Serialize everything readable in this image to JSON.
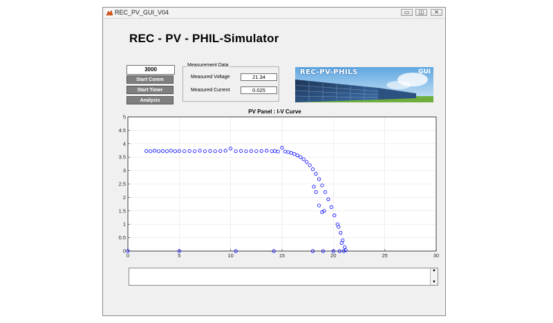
{
  "window": {
    "title": "REC_PV_GUI_V04",
    "controls": {
      "minimize": "▭",
      "maximize": "◫",
      "close": "✕"
    }
  },
  "app": {
    "title": "REC - PV - PHIL-Simulator",
    "value_field": "3000",
    "buttons": {
      "start_comm": "Start Comm",
      "start_timer": "Start Timer",
      "analysis": "Analysis"
    }
  },
  "measurement": {
    "panel_title": "Measurement Data",
    "voltage_label": "Measured Voltage",
    "voltage_value": "21.34",
    "current_label": "Measured Current",
    "current_value": "0.025"
  },
  "banner": {
    "text": "REC-PV-PHILS",
    "gui": "GUI"
  },
  "message_box": {
    "text": "",
    "icons": {
      "up": "chevron-up-icon",
      "down": "chevron-down-icon"
    }
  },
  "colors": {
    "button_gray": "#7f7f7f",
    "marker_blue": "#0000ff",
    "sky_blue": "#6fb3e6",
    "grass_green": "#6fae3c"
  },
  "chart_data": {
    "type": "scatter",
    "title": "PV Panel : I-V Curve",
    "xlabel": "",
    "ylabel": "",
    "xlim": [
      0,
      30
    ],
    "ylim": [
      0,
      5
    ],
    "xticks": [
      0,
      5,
      10,
      15,
      20,
      25,
      30
    ],
    "yticks": [
      0,
      0.5,
      1,
      1.5,
      2,
      2.5,
      3,
      3.5,
      4,
      4.5,
      5
    ],
    "grid": true,
    "marker": "open-circle",
    "series": [
      {
        "points": [
          [
            1.8,
            3.73
          ],
          [
            2.2,
            3.72
          ],
          [
            2.6,
            3.74
          ],
          [
            3.0,
            3.72
          ],
          [
            3.4,
            3.73
          ],
          [
            3.8,
            3.72
          ],
          [
            4.2,
            3.74
          ],
          [
            4.6,
            3.72
          ],
          [
            5.0,
            3.73
          ],
          [
            5.5,
            3.72
          ],
          [
            6.0,
            3.73
          ],
          [
            6.5,
            3.72
          ],
          [
            7.0,
            3.74
          ],
          [
            7.5,
            3.72
          ],
          [
            8.0,
            3.73
          ],
          [
            8.5,
            3.72
          ],
          [
            9.0,
            3.73
          ],
          [
            9.5,
            3.74
          ],
          [
            10.0,
            3.82
          ],
          [
            10.5,
            3.72
          ],
          [
            11.0,
            3.73
          ],
          [
            11.5,
            3.72
          ],
          [
            12.0,
            3.73
          ],
          [
            12.5,
            3.72
          ],
          [
            13.0,
            3.73
          ],
          [
            13.5,
            3.74
          ],
          [
            14.0,
            3.72
          ],
          [
            14.3,
            3.73
          ],
          [
            14.6,
            3.71
          ],
          [
            15.0,
            3.85
          ],
          [
            15.3,
            3.71
          ],
          [
            15.6,
            3.69
          ],
          [
            15.9,
            3.66
          ],
          [
            16.2,
            3.62
          ],
          [
            16.5,
            3.57
          ],
          [
            16.8,
            3.5
          ],
          [
            17.1,
            3.42
          ],
          [
            17.4,
            3.32
          ],
          [
            17.7,
            3.2
          ],
          [
            18.0,
            3.05
          ],
          [
            18.3,
            2.88
          ],
          [
            18.6,
            2.68
          ],
          [
            18.9,
            2.45
          ],
          [
            19.2,
            2.2
          ],
          [
            19.5,
            1.93
          ],
          [
            19.8,
            1.64
          ],
          [
            20.1,
            1.33
          ],
          [
            20.4,
            1.0
          ],
          [
            20.7,
            0.68
          ],
          [
            20.9,
            0.4
          ],
          [
            21.1,
            0.15
          ],
          [
            21.2,
            0.03
          ],
          [
            18.1,
            2.4
          ],
          [
            18.3,
            2.2
          ],
          [
            18.6,
            1.7
          ],
          [
            18.9,
            1.45
          ],
          [
            19.1,
            1.5
          ],
          [
            20.5,
            0.9
          ],
          [
            20.8,
            0.3
          ],
          [
            0.0,
            0.0
          ],
          [
            5.0,
            0.0
          ],
          [
            10.5,
            0.0
          ],
          [
            14.2,
            0.0
          ],
          [
            18.0,
            0.0
          ],
          [
            19.0,
            0.0
          ],
          [
            20.0,
            0.0
          ],
          [
            20.6,
            0.0
          ],
          [
            21.0,
            0.0
          ]
        ]
      }
    ]
  }
}
